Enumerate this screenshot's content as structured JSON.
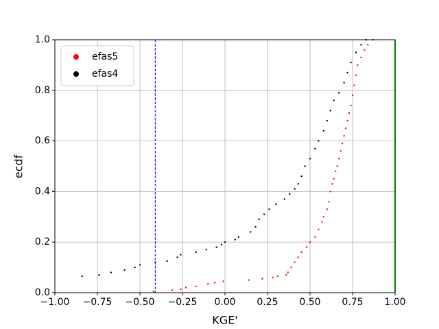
{
  "chart_data": {
    "type": "scatter",
    "xlabel": "KGE'",
    "ylabel": "ecdf",
    "xlim": [
      -1,
      1
    ],
    "ylim": [
      0,
      1
    ],
    "xticks": [
      {
        "value": -1,
        "label": "−1.00"
      },
      {
        "value": -0.75,
        "label": "−0.75"
      },
      {
        "value": -0.5,
        "label": "−0.50"
      },
      {
        "value": -0.25,
        "label": "−0.25"
      },
      {
        "value": 0,
        "label": "0.00"
      },
      {
        "value": 0.25,
        "label": "0.25"
      },
      {
        "value": 0.5,
        "label": "0.50"
      },
      {
        "value": 0.75,
        "label": "0.75"
      },
      {
        "value": 1,
        "label": "1.00"
      }
    ],
    "yticks": [
      {
        "value": 0,
        "label": "0.0"
      },
      0.2,
      0.4,
      0.6,
      0.8,
      {
        "value": 1,
        "label": "1.0"
      }
    ],
    "grid": true,
    "legend": "upper left",
    "vlines": [
      {
        "x": -0.41,
        "color": "#0000ff",
        "style": "dashed"
      },
      {
        "x": 1,
        "color": "#00ff00",
        "style": "solid"
      }
    ],
    "series": [
      {
        "name": "efas5",
        "color": "#ff0000",
        "x": [
          -0.42,
          -0.31,
          -0.26,
          -0.23,
          -0.17,
          -0.1,
          -0.06,
          -0.01,
          0.14,
          0.22,
          0.28,
          0.31,
          0.36,
          0.37,
          0.39,
          0.41,
          0.43,
          0.45,
          0.48,
          0.5,
          0.53,
          0.55,
          0.57,
          0.58,
          0.6,
          0.61,
          0.62,
          0.63,
          0.64,
          0.65,
          0.66,
          0.67,
          0.68,
          0.69,
          0.7,
          0.71,
          0.72,
          0.73,
          0.74,
          0.75,
          0.76,
          0.77,
          0.78,
          0.8,
          0.82,
          0.84,
          0.87
        ],
        "y": [
          0.005,
          0.01,
          0.013,
          0.02,
          0.025,
          0.035,
          0.04,
          0.045,
          0.05,
          0.055,
          0.06,
          0.065,
          0.07,
          0.08,
          0.1,
          0.12,
          0.14,
          0.16,
          0.18,
          0.2,
          0.22,
          0.25,
          0.28,
          0.3,
          0.33,
          0.36,
          0.4,
          0.43,
          0.45,
          0.48,
          0.5,
          0.53,
          0.56,
          0.59,
          0.62,
          0.65,
          0.68,
          0.71,
          0.74,
          0.78,
          0.82,
          0.86,
          0.9,
          0.93,
          0.96,
          0.98,
          1.0
        ]
      },
      {
        "name": "efas4",
        "color": "#000000",
        "x": [
          -0.84,
          -0.74,
          -0.67,
          -0.59,
          -0.53,
          -0.5,
          -0.41,
          -0.34,
          -0.28,
          -0.26,
          -0.17,
          -0.11,
          -0.05,
          -0.02,
          0.0,
          0.06,
          0.08,
          0.15,
          0.18,
          0.2,
          0.23,
          0.26,
          0.3,
          0.35,
          0.38,
          0.41,
          0.43,
          0.45,
          0.47,
          0.5,
          0.53,
          0.55,
          0.58,
          0.6,
          0.62,
          0.64,
          0.67,
          0.7,
          0.72,
          0.74,
          0.77,
          0.8,
          0.83
        ],
        "y": [
          0.065,
          0.07,
          0.08,
          0.09,
          0.1,
          0.11,
          0.12,
          0.125,
          0.14,
          0.15,
          0.16,
          0.17,
          0.18,
          0.19,
          0.2,
          0.21,
          0.22,
          0.24,
          0.26,
          0.29,
          0.31,
          0.33,
          0.35,
          0.37,
          0.39,
          0.41,
          0.43,
          0.46,
          0.5,
          0.53,
          0.57,
          0.6,
          0.64,
          0.68,
          0.72,
          0.76,
          0.79,
          0.83,
          0.87,
          0.91,
          0.95,
          0.98,
          1.0
        ]
      }
    ]
  }
}
